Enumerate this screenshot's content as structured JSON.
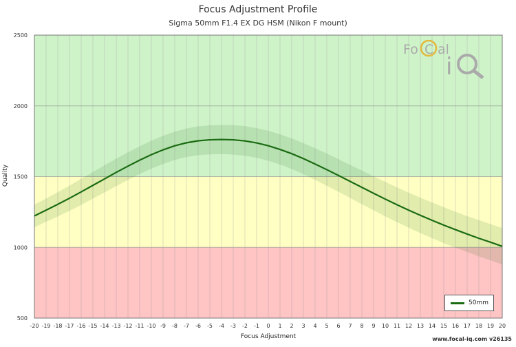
{
  "chart_data": {
    "type": "line",
    "title": "Focus Adjustment Profile",
    "subtitle": "Sigma 50mm F1.4 EX DG HSM (Nikon F mount)",
    "xlabel": "Focus Adjustment",
    "ylabel": "Quality",
    "xlim": [
      -20,
      20
    ],
    "ylim": [
      500,
      2500
    ],
    "x_ticks": [
      -20,
      -19,
      -18,
      -17,
      -16,
      -15,
      -14,
      -13,
      -12,
      -11,
      -10,
      -9,
      -8,
      -7,
      -6,
      -5,
      -4,
      -3,
      -2,
      -1,
      0,
      1,
      2,
      3,
      4,
      5,
      6,
      7,
      8,
      9,
      10,
      11,
      12,
      13,
      14,
      15,
      16,
      17,
      18,
      19,
      20
    ],
    "y_ticks": [
      500,
      1000,
      1500,
      2000,
      2500
    ],
    "bands": [
      {
        "from": 500,
        "to": 1000,
        "color": "#ffc4c4"
      },
      {
        "from": 1000,
        "to": 1500,
        "color": "#ffffc4"
      },
      {
        "from": 1500,
        "to": 2500,
        "color": "#cff3c9"
      }
    ],
    "series": [
      {
        "name": "50mm",
        "color": "#1a6b12",
        "x": [
          -20,
          -19,
          -18,
          -17,
          -16,
          -15,
          -14,
          -13,
          -12,
          -11,
          -10,
          -9,
          -8,
          -7,
          -6,
          -5,
          -4,
          -3,
          -2,
          -1,
          0,
          1,
          2,
          3,
          4,
          5,
          6,
          7,
          8,
          9,
          10,
          11,
          12,
          13,
          14,
          15,
          16,
          17,
          18,
          19,
          20
        ],
        "y": [
          1222,
          1263,
          1304,
          1347,
          1392,
          1438,
          1484,
          1530,
          1574,
          1616,
          1655,
          1689,
          1718,
          1739,
          1753,
          1760,
          1762,
          1760,
          1752,
          1738,
          1718,
          1692,
          1662,
          1627,
          1589,
          1549,
          1508,
          1466,
          1424,
          1382,
          1341,
          1301,
          1263,
          1226,
          1191,
          1157,
          1125,
          1094,
          1064,
          1036,
          1007
        ],
        "band_upper": [
          1302,
          1345,
          1390,
          1436,
          1484,
          1532,
          1580,
          1627,
          1672,
          1714,
          1754,
          1789,
          1818,
          1840,
          1855,
          1863,
          1865,
          1864,
          1857,
          1843,
          1824,
          1799,
          1770,
          1737,
          1701,
          1663,
          1623,
          1583,
          1543,
          1502,
          1463,
          1424,
          1387,
          1351,
          1317,
          1284,
          1252,
          1221,
          1192,
          1164,
          1136
        ],
        "band_lower": [
          1142,
          1181,
          1218,
          1258,
          1300,
          1344,
          1388,
          1433,
          1476,
          1518,
          1556,
          1589,
          1618,
          1638,
          1651,
          1657,
          1659,
          1656,
          1647,
          1633,
          1612,
          1585,
          1554,
          1517,
          1477,
          1435,
          1393,
          1349,
          1305,
          1262,
          1219,
          1178,
          1139,
          1101,
          1065,
          1030,
          998,
          967,
          936,
          908,
          878
        ]
      }
    ],
    "legend": {
      "placement": "bottom-right"
    },
    "grid": true
  },
  "logo": {
    "text_top": "FoCal",
    "text_bottom": "iQ"
  },
  "watermark": "www.focal-iq.com  v26135"
}
